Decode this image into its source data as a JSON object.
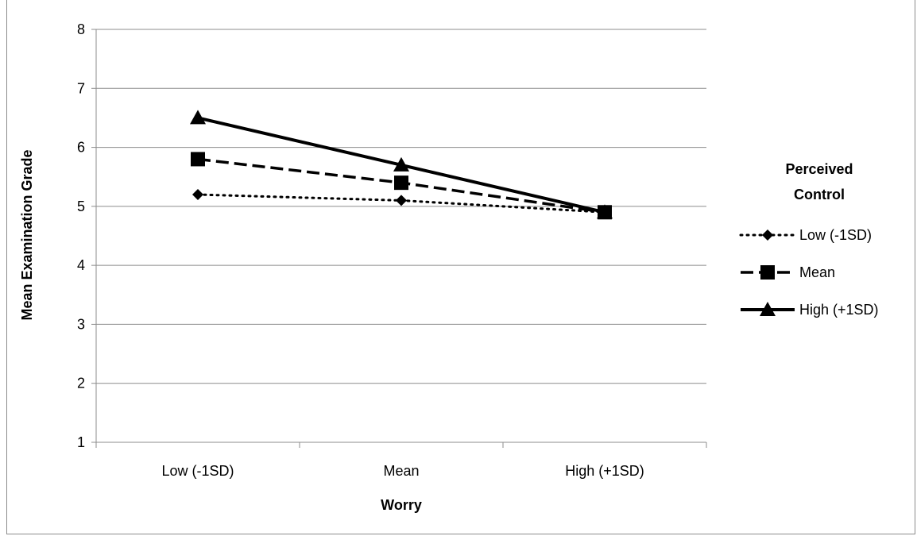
{
  "chart_data": {
    "type": "line",
    "xlabel": "Worry",
    "ylabel": "Mean Examination Grade",
    "categories": [
      "Low (-1SD)",
      "Mean",
      "High (+1SD)"
    ],
    "ylim": [
      1,
      8
    ],
    "yticks": [
      "1",
      "2",
      "3",
      "4",
      "5",
      "6",
      "7",
      "8"
    ],
    "grid": true,
    "legend_title": "Perceived Control",
    "legend_position": "right",
    "series": [
      {
        "name": "Low (-1SD)",
        "values": [
          5.2,
          5.1,
          4.9
        ],
        "line_style": "dotted",
        "marker": "diamond"
      },
      {
        "name": "Mean",
        "values": [
          5.8,
          5.4,
          4.9
        ],
        "line_style": "dashed",
        "marker": "square"
      },
      {
        "name": "High (+1SD)",
        "values": [
          6.5,
          5.7,
          4.9
        ],
        "line_style": "solid",
        "marker": "triangle"
      }
    ]
  }
}
